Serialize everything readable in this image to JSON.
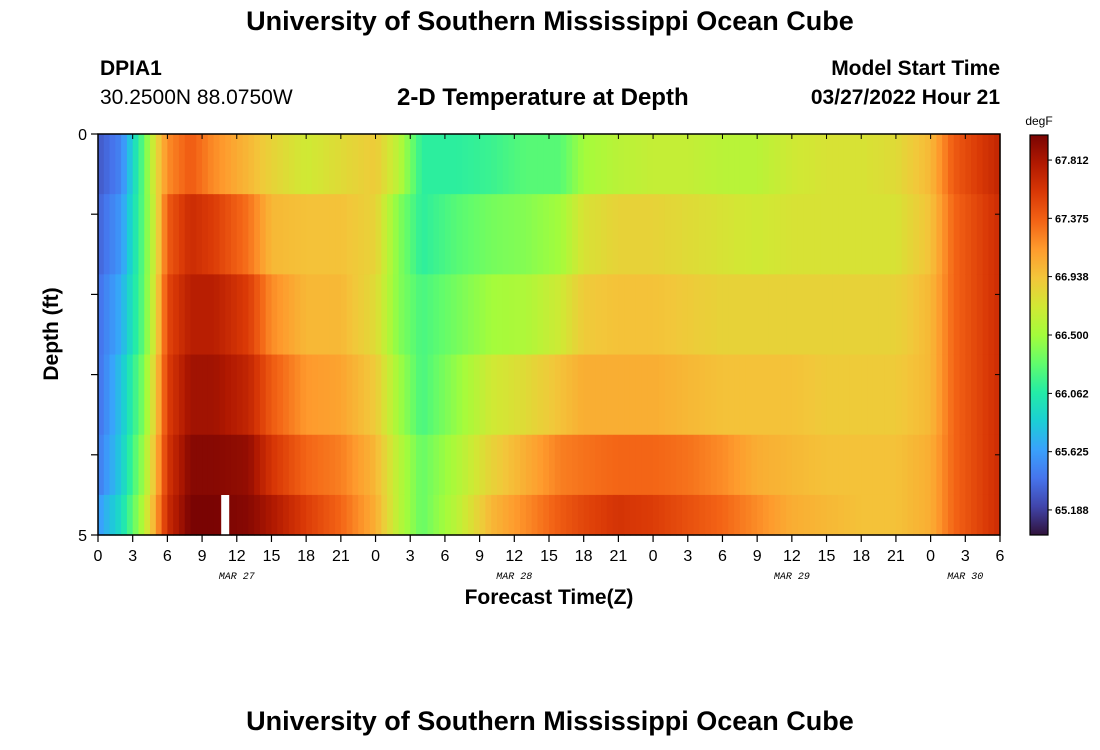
{
  "header": {
    "title": "University of Southern Mississippi Ocean Cube",
    "station_id": "DPIA1",
    "coordinates": "30.2500N  88.0750W",
    "subtitle": "2-D Temperature at Depth",
    "model_start_label": "Model Start Time",
    "model_start_value": "03/27/2022 Hour 21"
  },
  "footer": {
    "title": "University of Southern Mississippi Ocean Cube"
  },
  "chart_data": {
    "type": "heatmap",
    "title": "2-D Temperature at Depth",
    "xlabel": "Forecast Time(Z)",
    "ylabel": "Depth (ft)",
    "x_ticks": [
      "0",
      "3",
      "6",
      "9",
      "12",
      "15",
      "18",
      "21",
      "0",
      "3",
      "6",
      "9",
      "12",
      "15",
      "18",
      "21",
      "0",
      "3",
      "6",
      "9",
      "12",
      "15",
      "18",
      "21",
      "0",
      "3",
      "6"
    ],
    "date_labels": [
      {
        "label": "MAR 27",
        "hour": 12
      },
      {
        "label": "MAR 28",
        "hour": 36
      },
      {
        "label": "MAR 29",
        "hour": 60
      },
      {
        "label": "MAR 30",
        "hour": 75
      }
    ],
    "xlim": [
      0,
      78
    ],
    "ylim": [
      0,
      5
    ],
    "y_ticks": [
      "0",
      "5"
    ],
    "depth_layers": [
      0.25,
      1.25,
      2.25,
      3.25,
      4.25,
      4.75
    ],
    "colorbar": {
      "unit": "degF",
      "range": [
        65.0,
        68.0
      ],
      "tick_values": [
        "67.812",
        "67.375",
        "66.938",
        "66.500",
        "66.062",
        "65.625",
        "65.188"
      ],
      "colors": [
        "#30123b",
        "#4145ab",
        "#4675ed",
        "#39a2fc",
        "#1bcfd4",
        "#24eca6",
        "#61fc6c",
        "#a4fc3b",
        "#d1e834",
        "#f3c63a",
        "#fe9b2d",
        "#f36315",
        "#d93806",
        "#b11901",
        "#7a0403"
      ]
    },
    "time_series": [
      {
        "hour": 0,
        "values": [
          65.3,
          65.35,
          65.4,
          65.4,
          65.45,
          65.6
        ]
      },
      {
        "hour": 2,
        "values": [
          65.5,
          65.6,
          65.7,
          65.8,
          65.85,
          65.95
        ]
      },
      {
        "hour": 4,
        "values": [
          66.3,
          66.3,
          66.3,
          66.4,
          66.5,
          66.6
        ]
      },
      {
        "hour": 5,
        "values": [
          66.8,
          66.75,
          66.8,
          66.9,
          67.0,
          67.1
        ]
      },
      {
        "hour": 6,
        "values": [
          67.2,
          67.4,
          67.5,
          67.55,
          67.6,
          67.65
        ]
      },
      {
        "hour": 8,
        "values": [
          67.4,
          67.65,
          67.75,
          67.85,
          67.95,
          68.0
        ]
      },
      {
        "hour": 10,
        "values": [
          67.2,
          67.55,
          67.75,
          67.85,
          67.95,
          68.0
        ]
      },
      {
        "hour": 13,
        "values": [
          67.0,
          67.3,
          67.55,
          67.7,
          67.9,
          67.95
        ]
      },
      {
        "hour": 15,
        "values": [
          66.85,
          67.0,
          67.2,
          67.4,
          67.6,
          67.8
        ]
      },
      {
        "hour": 18,
        "values": [
          66.7,
          66.95,
          67.0,
          67.15,
          67.35,
          67.55
        ]
      },
      {
        "hour": 21,
        "values": [
          66.8,
          66.95,
          67.0,
          67.1,
          67.25,
          67.35
        ]
      },
      {
        "hour": 24,
        "values": [
          66.9,
          66.85,
          66.8,
          66.9,
          67.0,
          67.05
        ]
      },
      {
        "hour": 26,
        "values": [
          66.6,
          66.4,
          66.4,
          66.5,
          66.6,
          66.6
        ]
      },
      {
        "hour": 28,
        "values": [
          66.1,
          66.1,
          66.2,
          66.2,
          66.3,
          66.3
        ]
      },
      {
        "hour": 31,
        "values": [
          66.1,
          66.25,
          66.35,
          66.45,
          66.55,
          66.6
        ]
      },
      {
        "hour": 34,
        "values": [
          66.15,
          66.35,
          66.5,
          66.7,
          66.85,
          67.0
        ]
      },
      {
        "hour": 37,
        "values": [
          66.25,
          66.4,
          66.55,
          66.8,
          67.05,
          67.2
        ]
      },
      {
        "hour": 40,
        "values": [
          66.25,
          66.5,
          66.7,
          66.95,
          67.25,
          67.4
        ]
      },
      {
        "hour": 42,
        "values": [
          66.5,
          66.75,
          66.9,
          67.05,
          67.3,
          67.5
        ]
      },
      {
        "hour": 45,
        "values": [
          66.6,
          66.85,
          66.95,
          67.05,
          67.35,
          67.6
        ]
      },
      {
        "hour": 48,
        "values": [
          66.65,
          66.85,
          66.95,
          67.05,
          67.35,
          67.55
        ]
      },
      {
        "hour": 51,
        "values": [
          66.65,
          66.8,
          66.9,
          67.0,
          67.3,
          67.45
        ]
      },
      {
        "hour": 54,
        "values": [
          66.6,
          66.75,
          66.85,
          66.95,
          67.2,
          67.35
        ]
      },
      {
        "hour": 57,
        "values": [
          66.6,
          66.7,
          66.85,
          66.95,
          67.05,
          67.2
        ]
      },
      {
        "hour": 60,
        "values": [
          66.7,
          66.75,
          66.85,
          66.95,
          67.0,
          67.05
        ]
      },
      {
        "hour": 63,
        "values": [
          66.75,
          66.75,
          66.85,
          66.9,
          66.95,
          67.0
        ]
      },
      {
        "hour": 66,
        "values": [
          66.75,
          66.75,
          66.85,
          66.9,
          66.95,
          66.95
        ]
      },
      {
        "hour": 69,
        "values": [
          66.8,
          66.75,
          66.85,
          66.9,
          66.95,
          66.95
        ]
      },
      {
        "hour": 72,
        "values": [
          67.0,
          66.95,
          67.0,
          67.0,
          67.05,
          67.05
        ]
      },
      {
        "hour": 74,
        "values": [
          67.4,
          67.35,
          67.35,
          67.35,
          67.35,
          67.35
        ]
      },
      {
        "hour": 76,
        "values": [
          67.55,
          67.5,
          67.5,
          67.5,
          67.5,
          67.5
        ]
      },
      {
        "hour": 78,
        "values": [
          67.7,
          67.65,
          67.65,
          67.65,
          67.65,
          67.65
        ]
      }
    ],
    "current_time_marker": {
      "hour": 11
    }
  }
}
